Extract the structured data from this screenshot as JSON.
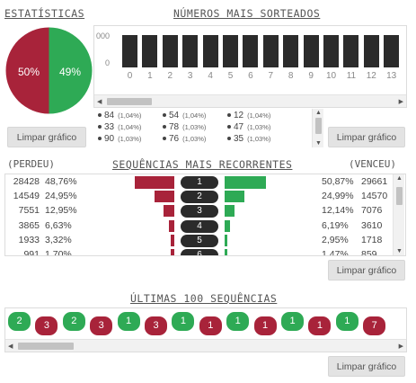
{
  "stats": {
    "title": "ESTATÍSTICAS",
    "lose_pct": "50%",
    "win_pct": "49%",
    "lose_color": "#a8233a",
    "win_color": "#2eaa55",
    "clear_label": "Limpar gráfico"
  },
  "top_numbers": {
    "title": "NÚMEROS MAIS SORTEADOS",
    "y_labels": [
      "000",
      "0"
    ],
    "x_labels": [
      "0",
      "1",
      "2",
      "3",
      "4",
      "5",
      "6",
      "7",
      "8",
      "9",
      "10",
      "11",
      "12",
      "13"
    ],
    "list": [
      {
        "number": "84",
        "pct": "(1,04%)"
      },
      {
        "number": "54",
        "pct": "(1,04%)"
      },
      {
        "number": "12",
        "pct": "(1,04%)"
      },
      {
        "number": "33",
        "pct": "(1,04%)"
      },
      {
        "number": "78",
        "pct": "(1,03%)"
      },
      {
        "number": "47",
        "pct": "(1,03%)"
      },
      {
        "number": "90",
        "pct": "(1,03%)"
      },
      {
        "number": "76",
        "pct": "(1,03%)"
      },
      {
        "number": "35",
        "pct": "(1,03%)"
      }
    ],
    "clear_label": "Limpar gráfico"
  },
  "sequences": {
    "title": "SEQUÊNCIAS MAIS RECORRENTES",
    "lost_label": "(PERDEU)",
    "won_label": "(VENCEU)",
    "rows": [
      {
        "lose_count": "28428",
        "lose_pct": "48,76%",
        "seq": "1",
        "win_pct": "50,87%",
        "win_count": "29661",
        "lose_frac": 0.4876,
        "win_frac": 0.5087
      },
      {
        "lose_count": "14549",
        "lose_pct": "24,95%",
        "seq": "2",
        "win_pct": "24,99%",
        "win_count": "14570",
        "lose_frac": 0.2495,
        "win_frac": 0.2499
      },
      {
        "lose_count": "7551",
        "lose_pct": "12,95%",
        "seq": "3",
        "win_pct": "12,14%",
        "win_count": "7076",
        "lose_frac": 0.1295,
        "win_frac": 0.1214
      },
      {
        "lose_count": "3865",
        "lose_pct": "6,63%",
        "seq": "4",
        "win_pct": "6,19%",
        "win_count": "3610",
        "lose_frac": 0.0663,
        "win_frac": 0.0619
      },
      {
        "lose_count": "1933",
        "lose_pct": "3,32%",
        "seq": "5",
        "win_pct": "2,95%",
        "win_count": "1718",
        "lose_frac": 0.0332,
        "win_frac": 0.0295
      },
      {
        "lose_count": "991",
        "lose_pct": "1,70%",
        "seq": "6",
        "win_pct": "1,47%",
        "win_count": "859",
        "lose_frac": 0.017,
        "win_frac": 0.0147
      }
    ],
    "clear_label": "Limpar gráfico"
  },
  "last100": {
    "title": "ÚLTIMAS 100 SEQUÊNCIAS",
    "items": [
      {
        "value": "2",
        "result": "win"
      },
      {
        "value": "3",
        "result": "lose"
      },
      {
        "value": "2",
        "result": "win"
      },
      {
        "value": "3",
        "result": "lose"
      },
      {
        "value": "1",
        "result": "win"
      },
      {
        "value": "3",
        "result": "lose"
      },
      {
        "value": "1",
        "result": "win"
      },
      {
        "value": "1",
        "result": "lose"
      },
      {
        "value": "1",
        "result": "win"
      },
      {
        "value": "1",
        "result": "lose"
      },
      {
        "value": "1",
        "result": "win"
      },
      {
        "value": "1",
        "result": "lose"
      },
      {
        "value": "1",
        "result": "win"
      },
      {
        "value": "7",
        "result": "lose"
      }
    ],
    "clear_label": "Limpar gráfico"
  }
}
